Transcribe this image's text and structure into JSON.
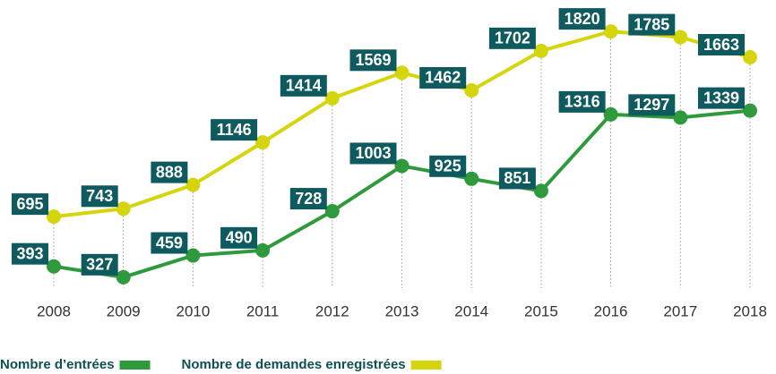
{
  "chart_data": {
    "type": "line",
    "categories": [
      "2008",
      "2009",
      "2010",
      "2011",
      "2012",
      "2013",
      "2014",
      "2015",
      "2016",
      "2017",
      "2018"
    ],
    "series": [
      {
        "name": "Nombre d’entrées",
        "color": "#2f9a3c",
        "values": [
          393,
          327,
          459,
          490,
          728,
          1003,
          925,
          851,
          1316,
          1297,
          1339
        ]
      },
      {
        "name": "Nombre de demandes enregistrées",
        "color": "#d5d50d",
        "values": [
          695,
          743,
          888,
          1146,
          1414,
          1569,
          1462,
          1702,
          1820,
          1785,
          1663
        ]
      }
    ],
    "ylim": [
      0,
      2000
    ],
    "label_color": "#0e5a5e"
  }
}
